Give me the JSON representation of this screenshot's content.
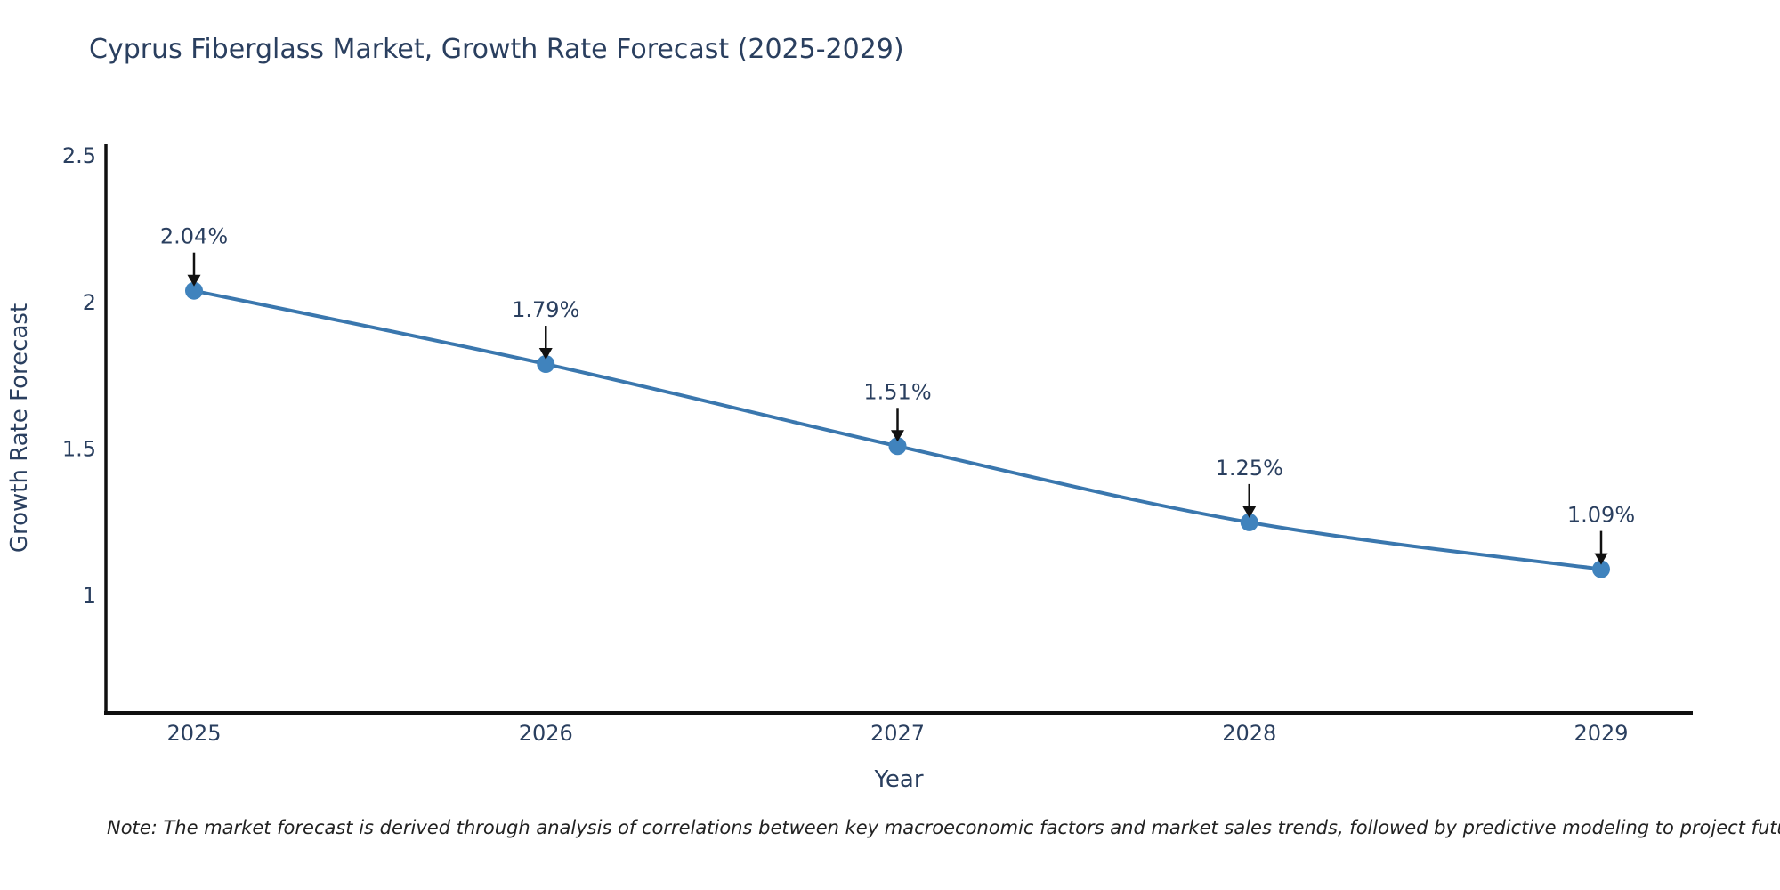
{
  "title": "Cyprus Fiberglass Market, Growth Rate Forecast (2025-2029)",
  "chart_data": {
    "type": "line",
    "x": [
      "2025",
      "2026",
      "2027",
      "2028",
      "2029"
    ],
    "series": [
      {
        "name": "Growth Rate Forecast",
        "values": [
          2.04,
          1.79,
          1.51,
          1.25,
          1.09
        ]
      }
    ],
    "point_labels": [
      "2.04%",
      "1.79%",
      "1.51%",
      "1.25%",
      "1.09%"
    ],
    "xlabel": "Year",
    "ylabel": "Growth Rate Forecast",
    "ytick_labels": [
      "2.5",
      "2",
      "1.5",
      "1"
    ],
    "yticks": [
      2.5,
      2,
      1.5,
      1
    ],
    "ylim": [
      0.6,
      2.54
    ],
    "grid": false,
    "legend": "none",
    "line_color": "#3a77ae",
    "marker_color": "#4083bd",
    "annotation_arrow_color": "#111111",
    "text_color": "#2a3f5f",
    "axis_color": "#101010",
    "background_color": "#ffffff"
  },
  "note": "Note: The market forecast is derived through analysis of correlations between key macroeconomic factors and market sales trends, followed by predictive modeling to project future sales"
}
